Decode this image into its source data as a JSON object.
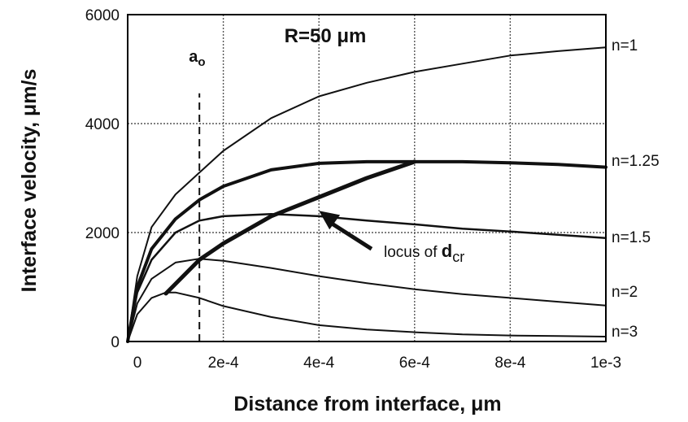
{
  "chart_data": {
    "type": "line",
    "title": "R=50 μm",
    "xlabel": "Distance from interface, μm",
    "ylabel": "Interface velocity, μm/s",
    "xlim": [
      0,
      0.001
    ],
    "ylim": [
      0,
      6000
    ],
    "xticks": [
      0,
      0.0002,
      0.0004,
      0.0006,
      0.0008,
      0.001
    ],
    "xtick_labels": [
      "0",
      "2e-4",
      "4e-4",
      "6e-4",
      "8e-4",
      "1e-3"
    ],
    "yticks": [
      0,
      2000,
      4000,
      6000
    ],
    "ytick_labels": [
      "0",
      "2000",
      "4000",
      "6000"
    ],
    "grid": true,
    "series": [
      {
        "name": "n=1",
        "x": [
          0,
          2e-05,
          5e-05,
          0.0001,
          0.00015,
          0.0002,
          0.0003,
          0.0004,
          0.0005,
          0.0006,
          0.0007,
          0.0008,
          0.0009,
          0.001
        ],
        "y": [
          0,
          1200,
          2100,
          2700,
          3100,
          3500,
          4100,
          4500,
          4750,
          4950,
          5100,
          5250,
          5330,
          5400
        ]
      },
      {
        "name": "n=1.25",
        "x": [
          0,
          2e-05,
          5e-05,
          0.0001,
          0.00015,
          0.0002,
          0.0003,
          0.0004,
          0.0005,
          0.0006,
          0.0007,
          0.0008,
          0.0009,
          0.001
        ],
        "y": [
          0,
          1000,
          1700,
          2250,
          2600,
          2850,
          3150,
          3270,
          3300,
          3300,
          3300,
          3280,
          3250,
          3200
        ]
      },
      {
        "name": "n=1.5",
        "x": [
          0,
          2e-05,
          5e-05,
          0.0001,
          0.00015,
          0.0002,
          0.0003,
          0.0004,
          0.0005,
          0.0006,
          0.0007,
          0.0008,
          0.0009,
          0.001
        ],
        "y": [
          0,
          900,
          1500,
          2000,
          2220,
          2300,
          2340,
          2300,
          2220,
          2150,
          2070,
          2020,
          1960,
          1900
        ]
      },
      {
        "name": "n=2",
        "x": [
          0,
          2e-05,
          5e-05,
          0.0001,
          0.00015,
          0.0002,
          0.0003,
          0.0004,
          0.0005,
          0.0006,
          0.0007,
          0.0008,
          0.0009,
          0.001
        ],
        "y": [
          0,
          700,
          1150,
          1450,
          1520,
          1480,
          1350,
          1200,
          1070,
          960,
          870,
          800,
          730,
          660
        ]
      },
      {
        "name": "n=3",
        "x": [
          0,
          2e-05,
          5e-05,
          8e-05,
          0.0001,
          0.00015,
          0.0002,
          0.0003,
          0.0004,
          0.0005,
          0.0006,
          0.0007,
          0.0008,
          0.0009,
          0.001
        ],
        "y": [
          0,
          500,
          800,
          900,
          900,
          800,
          650,
          450,
          300,
          220,
          170,
          130,
          110,
          100,
          90
        ]
      }
    ],
    "locus": {
      "label_prefix": "locus of ",
      "label_symbol": "d",
      "label_subscript": "cr",
      "x": [
        8e-05,
        0.00015,
        0.0002,
        0.0003,
        0.0004,
        0.0005,
        0.0006
      ],
      "y": [
        880,
        1500,
        1800,
        2300,
        2650,
        3000,
        3300
      ],
      "arrow_from": [
        0.00051,
        1700
      ],
      "arrow_to": [
        0.0004,
        2400
      ]
    },
    "ao_marker": {
      "label": "a",
      "label_subscript": "o",
      "x": 0.00015,
      "ylim": [
        0,
        5900
      ]
    }
  }
}
